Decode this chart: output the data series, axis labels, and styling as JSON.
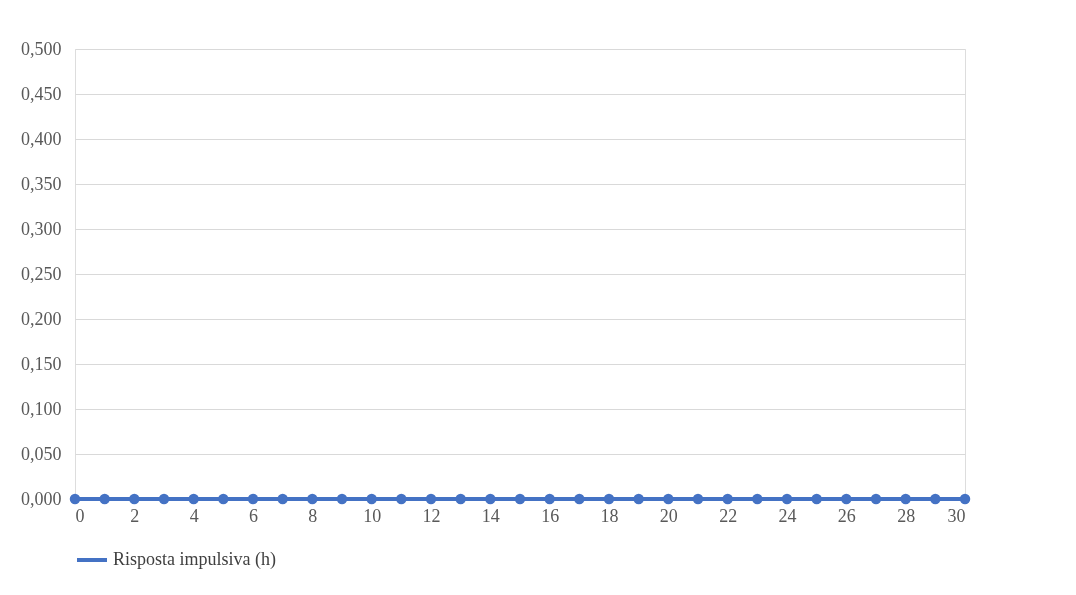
{
  "chart_data": {
    "type": "line",
    "x": [
      0,
      1,
      2,
      3,
      4,
      5,
      6,
      7,
      8,
      9,
      10,
      11,
      12,
      13,
      14,
      15,
      16,
      17,
      18,
      19,
      20,
      21,
      22,
      23,
      24,
      25,
      26,
      27,
      28,
      29,
      30
    ],
    "series": [
      {
        "name": "Risposta impulsiva (h)",
        "color": "#4472c4",
        "values": [
          0,
          0,
          0,
          0,
          0,
          0,
          0,
          0,
          0,
          0,
          0,
          0,
          0,
          0,
          0,
          0,
          0,
          0,
          0,
          0,
          0,
          0,
          0,
          0,
          0,
          0,
          0,
          0,
          0,
          0,
          0
        ]
      }
    ],
    "xlim": [
      0,
      30
    ],
    "xticks": [
      0,
      2,
      4,
      6,
      8,
      10,
      12,
      14,
      16,
      18,
      20,
      22,
      24,
      26,
      28,
      30
    ],
    "ylim": [
      0,
      0.5
    ],
    "yticks": [
      {
        "value": 0,
        "label": "0,000"
      },
      {
        "value": 0.05,
        "label": "0,050"
      },
      {
        "value": 0.1,
        "label": "0,100"
      },
      {
        "value": 0.15,
        "label": "0,150"
      },
      {
        "value": 0.2,
        "label": "0,200"
      },
      {
        "value": 0.25,
        "label": "0,250"
      },
      {
        "value": 0.3,
        "label": "0,300"
      },
      {
        "value": 0.35,
        "label": "0,350"
      },
      {
        "value": 0.4,
        "label": "0,400"
      },
      {
        "value": 0.45,
        "label": "0,450"
      },
      {
        "value": 0.5,
        "label": "0,500"
      }
    ],
    "grid": "y",
    "legend": "bottom",
    "marker": "circle",
    "line_style": "solid"
  }
}
